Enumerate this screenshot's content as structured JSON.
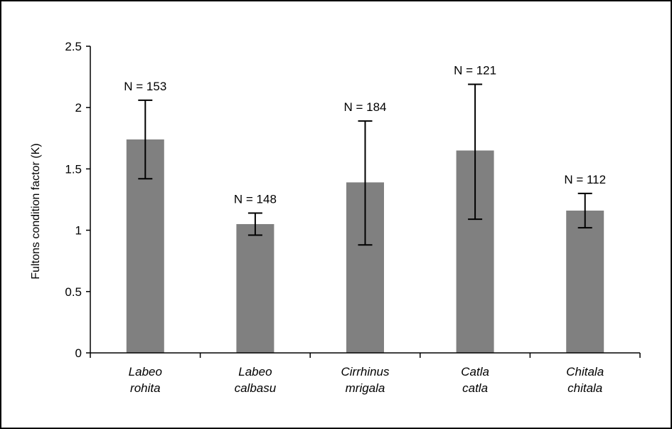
{
  "chart_data": {
    "type": "bar",
    "ylabel": "Fultons condition factor (K)",
    "xlabel": "",
    "ylim": [
      0,
      2.5
    ],
    "yticks": [
      "0",
      "0.5",
      "1",
      "1.5",
      "2",
      "2.5"
    ],
    "grid": false,
    "legend": "none",
    "bar_color": "#808080",
    "categories": [
      {
        "line1": "Labeo",
        "line2": "rohita"
      },
      {
        "line1": "Labeo",
        "line2": "calbasu"
      },
      {
        "line1": "Cirrhinus",
        "line2": "mrigala"
      },
      {
        "line1": "Catla",
        "line2": "catla"
      },
      {
        "line1": "Chitala",
        "line2": "chitala"
      }
    ],
    "values": [
      1.74,
      1.05,
      1.39,
      1.65,
      1.16
    ],
    "error_low": [
      1.42,
      0.96,
      0.88,
      1.09,
      1.02
    ],
    "error_high": [
      2.06,
      1.14,
      1.89,
      2.19,
      1.3
    ],
    "n_labels": [
      "N = 153",
      "N = 148",
      "N = 184",
      "N = 121",
      "N = 112"
    ]
  }
}
